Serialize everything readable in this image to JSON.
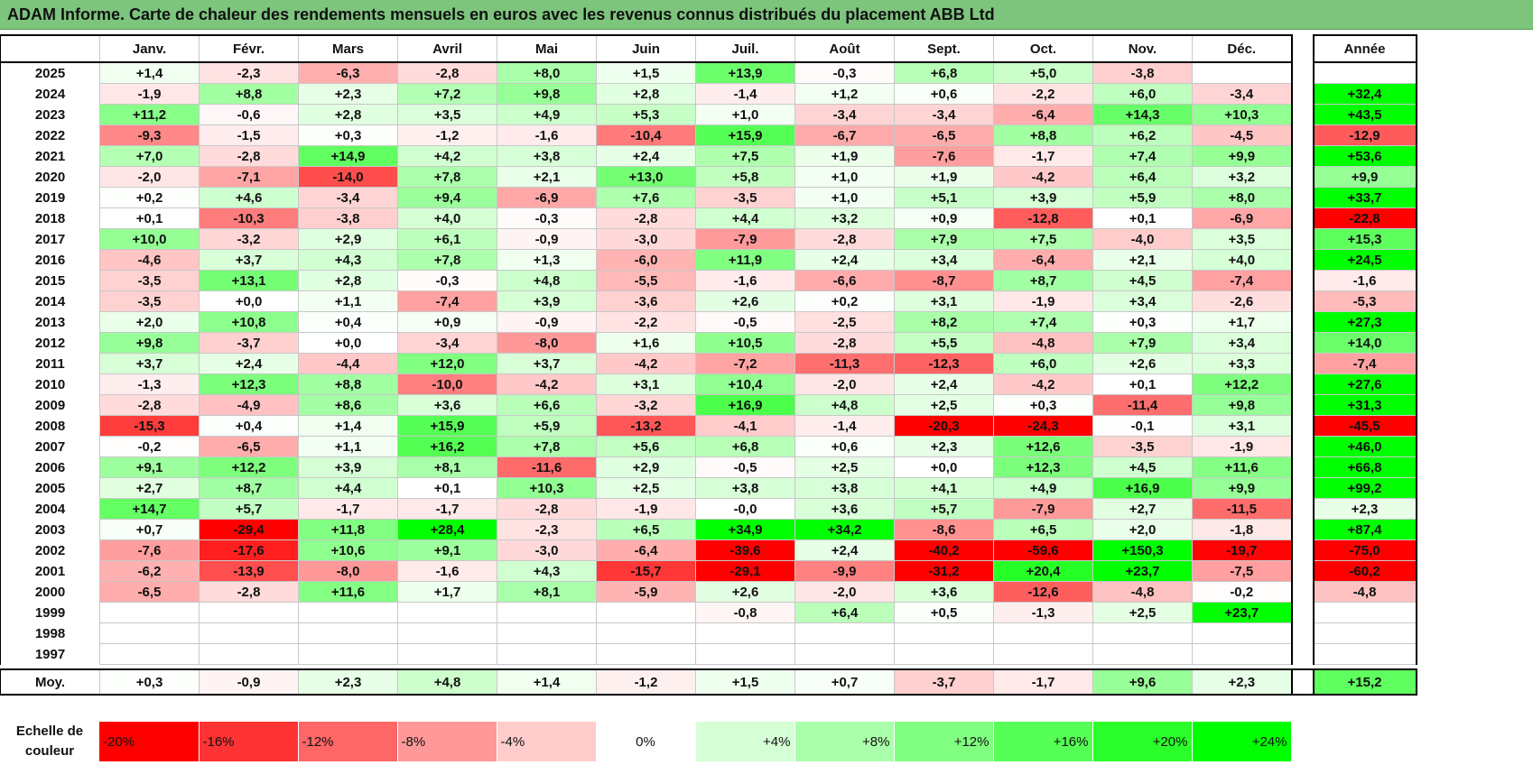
{
  "title": "ADAM Informe. Carte de chaleur des rendements mensuels en euros avec les revenus connus distribués du placement ABB Ltd",
  "chart_data": {
    "type": "heatmap",
    "title": "ADAM Informe. Carte de chaleur des rendements mensuels en euros avec les revenus connus distribués du placement ABB Ltd",
    "columns": [
      "Janv.",
      "Févr.",
      "Mars",
      "Avril",
      "Mai",
      "Juin",
      "Juil.",
      "Août",
      "Sept.",
      "Oct.",
      "Nov.",
      "Déc."
    ],
    "year_header": "Année",
    "rows": [
      {
        "label": "2025",
        "values": [
          "+1,4",
          "-2,3",
          "-6,3",
          "-2,8",
          "+8,0",
          "+1,5",
          "+13,9",
          "-0,3",
          "+6,8",
          "+5,0",
          "-3,8",
          ""
        ],
        "year": ""
      },
      {
        "label": "2024",
        "values": [
          "-1,9",
          "+8,8",
          "+2,3",
          "+7,2",
          "+9,8",
          "+2,8",
          "-1,4",
          "+1,2",
          "+0,6",
          "-2,2",
          "+6,0",
          "-3,4"
        ],
        "year": "+32,4"
      },
      {
        "label": "2023",
        "values": [
          "+11,2",
          "-0,6",
          "+2,8",
          "+3,5",
          "+4,9",
          "+5,3",
          "+1,0",
          "-3,4",
          "-3,4",
          "-6,4",
          "+14,3",
          "+10,3"
        ],
        "year": "+43,5"
      },
      {
        "label": "2022",
        "values": [
          "-9,3",
          "-1,5",
          "+0,3",
          "-1,2",
          "-1,6",
          "-10,4",
          "+15,9",
          "-6,7",
          "-6,5",
          "+8,8",
          "+6,2",
          "-4,5"
        ],
        "year": "-12,9"
      },
      {
        "label": "2021",
        "values": [
          "+7,0",
          "-2,8",
          "+14,9",
          "+4,2",
          "+3,8",
          "+2,4",
          "+7,5",
          "+1,9",
          "-7,6",
          "-1,7",
          "+7,4",
          "+9,9"
        ],
        "year": "+53,6"
      },
      {
        "label": "2020",
        "values": [
          "-2,0",
          "-7,1",
          "-14,0",
          "+7,8",
          "+2,1",
          "+13,0",
          "+5,8",
          "+1,0",
          "+1,9",
          "-4,2",
          "+6,4",
          "+3,2"
        ],
        "year": "+9,9"
      },
      {
        "label": "2019",
        "values": [
          "+0,2",
          "+4,6",
          "-3,4",
          "+9,4",
          "-6,9",
          "+7,6",
          "-3,5",
          "+1,0",
          "+5,1",
          "+3,9",
          "+5,9",
          "+8,0"
        ],
        "year": "+33,7"
      },
      {
        "label": "2018",
        "values": [
          "+0,1",
          "-10,3",
          "-3,8",
          "+4,0",
          "-0,3",
          "-2,8",
          "+4,4",
          "+3,2",
          "+0,9",
          "-12,8",
          "+0,1",
          "-6,9"
        ],
        "year": "-22,8"
      },
      {
        "label": "2017",
        "values": [
          "+10,0",
          "-3,2",
          "+2,9",
          "+6,1",
          "-0,9",
          "-3,0",
          "-7,9",
          "-2,8",
          "+7,9",
          "+7,5",
          "-4,0",
          "+3,5"
        ],
        "year": "+15,3"
      },
      {
        "label": "2016",
        "values": [
          "-4,6",
          "+3,7",
          "+4,3",
          "+7,8",
          "+1,3",
          "-6,0",
          "+11,9",
          "+2,4",
          "+3,4",
          "-6,4",
          "+2,1",
          "+4,0"
        ],
        "year": "+24,5"
      },
      {
        "label": "2015",
        "values": [
          "-3,5",
          "+13,1",
          "+2,8",
          "-0,3",
          "+4,8",
          "-5,5",
          "-1,6",
          "-6,6",
          "-8,7",
          "+8,7",
          "+4,5",
          "-7,4"
        ],
        "year": "-1,6"
      },
      {
        "label": "2014",
        "values": [
          "-3,5",
          "+0,0",
          "+1,1",
          "-7,4",
          "+3,9",
          "-3,6",
          "+2,6",
          "+0,2",
          "+3,1",
          "-1,9",
          "+3,4",
          "-2,6"
        ],
        "year": "-5,3"
      },
      {
        "label": "2013",
        "values": [
          "+2,0",
          "+10,8",
          "+0,4",
          "+0,9",
          "-0,9",
          "-2,2",
          "-0,5",
          "-2,5",
          "+8,2",
          "+7,4",
          "+0,3",
          "+1,7"
        ],
        "year": "+27,3"
      },
      {
        "label": "2012",
        "values": [
          "+9,8",
          "-3,7",
          "+0,0",
          "-3,4",
          "-8,0",
          "+1,6",
          "+10,5",
          "-2,8",
          "+5,5",
          "-4,8",
          "+7,9",
          "+3,4"
        ],
        "year": "+14,0"
      },
      {
        "label": "2011",
        "values": [
          "+3,7",
          "+2,4",
          "-4,4",
          "+12,0",
          "+3,7",
          "-4,2",
          "-7,2",
          "-11,3",
          "-12,3",
          "+6,0",
          "+2,6",
          "+3,3"
        ],
        "year": "-7,4"
      },
      {
        "label": "2010",
        "values": [
          "-1,3",
          "+12,3",
          "+8,8",
          "-10,0",
          "-4,2",
          "+3,1",
          "+10,4",
          "-2,0",
          "+2,4",
          "-4,2",
          "+0,1",
          "+12,2"
        ],
        "year": "+27,6"
      },
      {
        "label": "2009",
        "values": [
          "-2,8",
          "-4,9",
          "+8,6",
          "+3,6",
          "+6,6",
          "-3,2",
          "+16,9",
          "+4,8",
          "+2,5",
          "+0,3",
          "-11,4",
          "+9,8"
        ],
        "year": "+31,3"
      },
      {
        "label": "2008",
        "values": [
          "-15,3",
          "+0,4",
          "+1,4",
          "+15,9",
          "+5,9",
          "-13,2",
          "-4,1",
          "-1,4",
          "-20,3",
          "-24,3",
          "-0,1",
          "+3,1"
        ],
        "year": "-45,5"
      },
      {
        "label": "2007",
        "values": [
          "-0,2",
          "-6,5",
          "+1,1",
          "+16,2",
          "+7,8",
          "+5,6",
          "+6,8",
          "+0,6",
          "+2,3",
          "+12,6",
          "-3,5",
          "-1,9"
        ],
        "year": "+46,0"
      },
      {
        "label": "2006",
        "values": [
          "+9,1",
          "+12,2",
          "+3,9",
          "+8,1",
          "-11,6",
          "+2,9",
          "-0,5",
          "+2,5",
          "+0,0",
          "+12,3",
          "+4,5",
          "+11,6"
        ],
        "year": "+66,8"
      },
      {
        "label": "2005",
        "values": [
          "+2,7",
          "+8,7",
          "+4,4",
          "+0,1",
          "+10,3",
          "+2,5",
          "+3,8",
          "+3,8",
          "+4,1",
          "+4,9",
          "+16,9",
          "+9,9"
        ],
        "year": "+99,2"
      },
      {
        "label": "2004",
        "values": [
          "+14,7",
          "+5,7",
          "-1,7",
          "-1,7",
          "-2,8",
          "-1,9",
          "-0,0",
          "+3,6",
          "+5,7",
          "-7,9",
          "+2,7",
          "-11,5"
        ],
        "year": "+2,3"
      },
      {
        "label": "2003",
        "values": [
          "+0,7",
          "-29,4",
          "+11,8",
          "+28,4",
          "-2,3",
          "+6,5",
          "+34,9",
          "+34,2",
          "-8,6",
          "+6,5",
          "+2,0",
          "-1,8"
        ],
        "year": "+87,4"
      },
      {
        "label": "2002",
        "values": [
          "-7,6",
          "-17,6",
          "+10,6",
          "+9,1",
          "-3,0",
          "-6,4",
          "-39,6",
          "+2,4",
          "-40,2",
          "-59,6",
          "+150,3",
          "-19,7"
        ],
        "year": "-75,0"
      },
      {
        "label": "2001",
        "values": [
          "-6,2",
          "-13,9",
          "-8,0",
          "-1,6",
          "+4,3",
          "-15,7",
          "-29,1",
          "-9,9",
          "-31,2",
          "+20,4",
          "+23,7",
          "-7,5"
        ],
        "year": "-60,2"
      },
      {
        "label": "2000",
        "values": [
          "-6,5",
          "-2,8",
          "+11,6",
          "+1,7",
          "+8,1",
          "-5,9",
          "+2,6",
          "-2,0",
          "+3,6",
          "-12,6",
          "-4,8",
          "-0,2"
        ],
        "year": "-4,8"
      },
      {
        "label": "1999",
        "values": [
          "",
          "",
          "",
          "",
          "",
          "",
          "-0,8",
          "+6,4",
          "+0,5",
          "-1,3",
          "+2,5",
          "+23,7"
        ],
        "year": ""
      },
      {
        "label": "1998",
        "values": [
          "",
          "",
          "",
          "",
          "",
          "",
          "",
          "",
          "",
          "",
          "",
          ""
        ],
        "year": ""
      },
      {
        "label": "1997",
        "values": [
          "",
          "",
          "",
          "",
          "",
          "",
          "",
          "",
          "",
          "",
          "",
          ""
        ],
        "year": ""
      }
    ],
    "average": {
      "label": "Moy.",
      "values": [
        "+0,3",
        "-0,9",
        "+2,3",
        "+4,8",
        "+1,4",
        "-1,2",
        "+1,5",
        "+0,7",
        "-3,7",
        "-1,7",
        "+9,6",
        "+2,3"
      ],
      "year": "+15,2"
    },
    "scale": {
      "label": "Echelle de couleur",
      "stops": [
        "-20%",
        "-16%",
        "-12%",
        "-8%",
        "-4%",
        "0%",
        "+4%",
        "+8%",
        "+12%",
        "+16%",
        "+20%",
        "+24%"
      ],
      "values": [
        -20,
        -16,
        -12,
        -8,
        -4,
        0,
        4,
        8,
        12,
        16,
        20,
        24
      ]
    }
  }
}
